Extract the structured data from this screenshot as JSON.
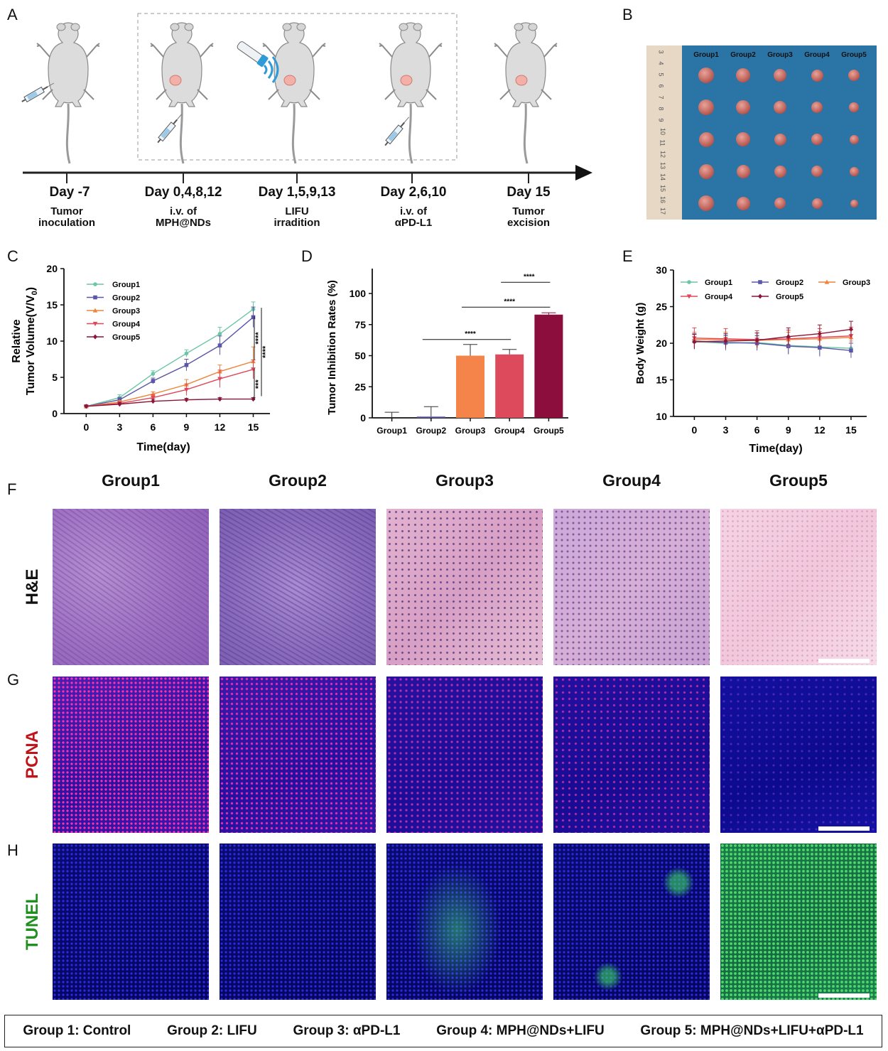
{
  "panels": {
    "A": "A",
    "B": "B",
    "C": "C",
    "D": "D",
    "E": "E",
    "F": "F",
    "G": "G",
    "H": "H"
  },
  "timeline": [
    {
      "day": "Day -7",
      "desc": "Tumor\ninoculation"
    },
    {
      "day": "Day 0,4,8,12",
      "desc": "i.v. of\nMPH@NDs"
    },
    {
      "day": "Day 1,5,9,13",
      "desc": "LIFU\nirradition"
    },
    {
      "day": "Day 2,6,10",
      "desc": "i.v. of\nαPD-L1"
    },
    {
      "day": "Day 15",
      "desc": "Tumor\nexcision"
    }
  ],
  "photo": {
    "groups": [
      "Group1",
      "Group2",
      "Group3",
      "Group4",
      "Group5"
    ],
    "ruler_marks": [
      "3",
      "4",
      "5",
      "6",
      "7",
      "8",
      "9",
      "10",
      "11",
      "12",
      "13",
      "14",
      "15",
      "16",
      "17"
    ]
  },
  "histology": {
    "groups": [
      "Group1",
      "Group2",
      "Group3",
      "Group4",
      "Group5"
    ],
    "stains": [
      "H&E",
      "PCNA",
      "TUNEL"
    ],
    "stain_colors": {
      "H&E": "#111111",
      "PCNA": "#c0141a",
      "TUNEL": "#1f8f1f"
    }
  },
  "legend": [
    "Group 1: Control",
    "Group 2: LIFU",
    "Group 3: αPD-L1",
    "Group 4: MPH@NDs+LIFU",
    "Group 5: MPH@NDs+LIFU+αPD-L1"
  ],
  "chart_data": [
    {
      "type": "line",
      "xlabel": "Time(day)",
      "ylabel_line1": "Relative",
      "ylabel_line2": "Tumor Volume(V/V",
      "ylabel_sub": "0",
      "ylabel_end": ")",
      "x": [
        0,
        3,
        6,
        9,
        12,
        15
      ],
      "xlim": [
        -2,
        16.5
      ],
      "ylim": [
        0,
        20
      ],
      "yticks": [
        0,
        5,
        10,
        15,
        20
      ],
      "legend_position": "top-left",
      "series": [
        {
          "name": "Group1",
          "color": "#6cc6a5",
          "values": [
            1,
            2.2,
            5.5,
            8.3,
            11,
            14.4
          ],
          "err": [
            0.1,
            0.4,
            0.4,
            0.5,
            0.9,
            1.0
          ]
        },
        {
          "name": "Group2",
          "color": "#5a56a8",
          "values": [
            1,
            1.9,
            4.5,
            6.7,
            9.4,
            13.3
          ],
          "err": [
            0.1,
            0.3,
            0.4,
            0.8,
            1.3,
            1.4
          ]
        },
        {
          "name": "Group3",
          "color": "#f0843a",
          "values": [
            1,
            1.6,
            2.7,
            4.0,
            5.8,
            7.2
          ],
          "err": [
            0.1,
            0.2,
            0.3,
            0.7,
            0.9,
            2.0
          ]
        },
        {
          "name": "Group4",
          "color": "#e0485a",
          "values": [
            1,
            1.4,
            2.2,
            3.3,
            4.8,
            6.1
          ],
          "err": [
            0.1,
            0.2,
            0.4,
            0.8,
            1.2,
            1.3
          ]
        },
        {
          "name": "Group5",
          "color": "#8a1538",
          "values": [
            1,
            1.3,
            1.7,
            1.9,
            2.0,
            2.0
          ],
          "err": [
            0.1,
            0.2,
            0.3,
            0.2,
            0.2,
            0.2
          ]
        }
      ],
      "significance": [
        "****",
        "****",
        "***"
      ]
    },
    {
      "type": "bar",
      "ylabel": "Tumor Inhibition Rates  (%)",
      "categories": [
        "Group1",
        "Group2",
        "Group3",
        "Group4",
        "Group5"
      ],
      "values": [
        0,
        1,
        50,
        51,
        83
      ],
      "err": [
        4.5,
        8,
        9,
        4,
        1.5
      ],
      "colors": [
        "#9fd3c2",
        "#5a56a8",
        "#f4844a",
        "#dc4a5c",
        "#8c0e3c"
      ],
      "ylim": [
        0,
        120
      ],
      "yticks": [
        0,
        25,
        50,
        75,
        100
      ],
      "significance": [
        {
          "from": 1,
          "to": 3,
          "y": 63,
          "label": "****"
        },
        {
          "from": 2,
          "to": 4,
          "y": 89,
          "label": "****"
        },
        {
          "from": 3,
          "to": 4,
          "y": 109,
          "label": "****"
        }
      ]
    },
    {
      "type": "line",
      "xlabel": "Time(day)",
      "ylabel": "Body Weight (g)",
      "x": [
        0,
        3,
        6,
        9,
        12,
        15
      ],
      "xlim": [
        -2,
        16.5
      ],
      "ylim": [
        10,
        30
      ],
      "yticks": [
        10,
        15,
        20,
        25,
        30
      ],
      "legend_position": "top",
      "series": [
        {
          "name": "Group1",
          "color": "#6cc6a5",
          "values": [
            20.2,
            20.0,
            20.1,
            19.7,
            19.5,
            19.3
          ],
          "err": [
            1.0,
            1.0,
            1.0,
            1.2,
            1.1,
            1.0
          ]
        },
        {
          "name": "Group2",
          "color": "#5a56a8",
          "values": [
            20.3,
            20.1,
            20.0,
            19.6,
            19.4,
            19.0
          ],
          "err": [
            1.0,
            1.0,
            1.0,
            1.1,
            1.2,
            1.0
          ]
        },
        {
          "name": "Group3",
          "color": "#f0843a",
          "values": [
            20.5,
            20.5,
            20.4,
            20.5,
            20.6,
            20.8
          ],
          "err": [
            1.0,
            1.0,
            1.0,
            1.0,
            1.0,
            1.0
          ]
        },
        {
          "name": "Group4",
          "color": "#e0485a",
          "values": [
            20.7,
            20.6,
            20.5,
            20.6,
            20.8,
            21.0
          ],
          "err": [
            1.4,
            1.4,
            1.2,
            1.2,
            1.2,
            1.2
          ]
        },
        {
          "name": "Group5",
          "color": "#8a1538",
          "values": [
            20.2,
            20.3,
            20.4,
            20.9,
            21.3,
            21.9
          ],
          "err": [
            1.0,
            1.0,
            1.0,
            1.2,
            1.2,
            1.1
          ]
        }
      ]
    }
  ]
}
